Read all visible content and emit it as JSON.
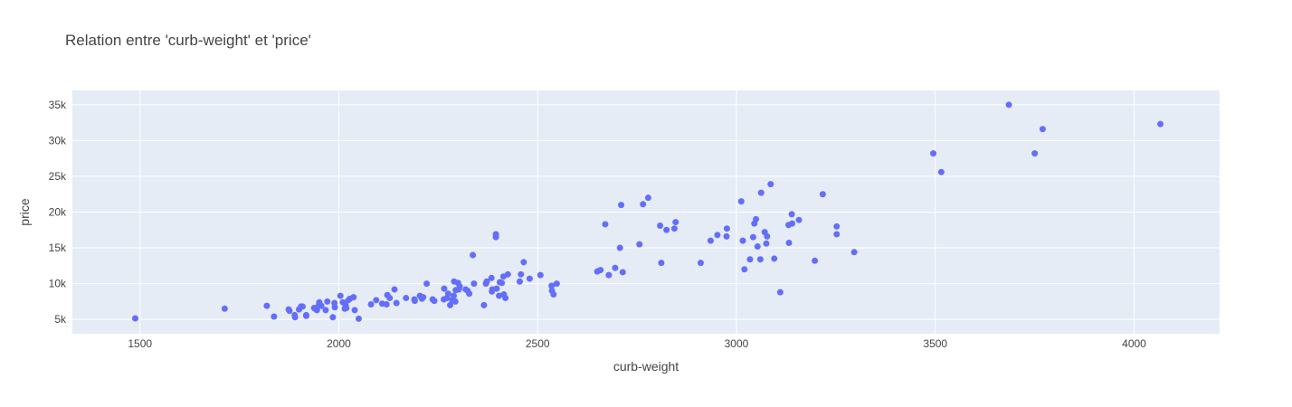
{
  "chart_data": {
    "type": "scatter",
    "title": "Relation entre 'curb-weight' et 'price'",
    "xlabel": "curb-weight",
    "ylabel": "price",
    "xlim": [
      1330,
      4215
    ],
    "ylim": [
      3000,
      37000
    ],
    "x_ticks": [
      1500,
      2000,
      2500,
      3000,
      3500,
      4000
    ],
    "x_tick_labels": [
      "1500",
      "2000",
      "2500",
      "3000",
      "3500",
      "4000"
    ],
    "y_ticks": [
      5000,
      10000,
      15000,
      20000,
      25000,
      30000,
      35000
    ],
    "y_tick_labels": [
      "5k",
      "10k",
      "15k",
      "20k",
      "25k",
      "30k",
      "35k"
    ],
    "grid": true,
    "colors": {
      "marker": "#636efa",
      "plot_bg": "#e5ecf6",
      "grid": "#ffffff"
    },
    "series": [
      {
        "x": [
          1488,
          1713,
          1819,
          1837,
          1874,
          1876,
          1889,
          1890,
          1900,
          1905,
          1909,
          1918,
          1918,
          1938,
          1940,
          1945,
          1950,
          1951,
          1956,
          1967,
          1971,
          1985,
          1989,
          1990,
          2004,
          2010,
          2015,
          2017,
          2019,
          2024,
          2028,
          2037,
          2040,
          2050,
          2081,
          2094,
          2109,
          2120,
          2122,
          2128,
          2140,
          2145,
          2169,
          2190,
          2191,
          2204,
          2209,
          2212,
          2221,
          2236,
          2240,
          2264,
          2265,
          2272,
          2275,
          2280,
          2285,
          2289,
          2290,
          2293,
          2294,
          2300,
          2302,
          2304,
          2319,
          2324,
          2328,
          2337,
          2340,
          2365,
          2370,
          2372,
          2384,
          2385,
          2386,
          2395,
          2395,
          2397,
          2403,
          2405,
          2410,
          2414,
          2415,
          2419,
          2425,
          2455,
          2458,
          2465,
          2480,
          2507,
          2535,
          2536,
          2540,
          2548,
          2650,
          2658,
          2670,
          2679,
          2695,
          2707,
          2710,
          2714,
          2756,
          2765,
          2778,
          2808,
          2811,
          2824,
          2844,
          2847,
          2910,
          2935,
          2952,
          2975,
          2976,
          3012,
          3016,
          3020,
          3034,
          3042,
          3045,
          3049,
          3053,
          3060,
          3062,
          3071,
          3075,
          3077,
          3086,
          3095,
          3110,
          3131,
          3132,
          3139,
          3140,
          3157,
          3197,
          3217,
          3252,
          3252,
          3296,
          3495,
          3515,
          3685,
          3750,
          3770,
          4066
        ],
        "y": [
          5150,
          6500,
          6900,
          5400,
          6400,
          6200,
          5600,
          5300,
          6400,
          6800,
          6800,
          5600,
          5500,
          6600,
          6500,
          6300,
          7000,
          7400,
          6900,
          6300,
          7500,
          5300,
          7300,
          6700,
          8300,
          7400,
          6500,
          7000,
          6600,
          7700,
          7900,
          8100,
          6300,
          5100,
          7100,
          7700,
          7200,
          7100,
          8400,
          8000,
          9200,
          7300,
          8000,
          7800,
          7600,
          8300,
          7900,
          8100,
          10000,
          7800,
          7600,
          7800,
          9300,
          8000,
          8600,
          7000,
          7700,
          8300,
          10300,
          7500,
          9100,
          10100,
          9200,
          9600,
          9200,
          9000,
          8600,
          14000,
          10000,
          7000,
          10000,
          10300,
          10800,
          8900,
          9200,
          16500,
          16900,
          9300,
          8300,
          10200,
          10100,
          11000,
          8500,
          8000,
          11300,
          10300,
          11300,
          13000,
          10700,
          11200,
          9700,
          9000,
          8500,
          10000,
          11700,
          11900,
          18300,
          11200,
          12200,
          15000,
          21000,
          11600,
          15500,
          21100,
          22000,
          18100,
          12900,
          17500,
          17700,
          18600,
          12900,
          16000,
          16800,
          16600,
          17700,
          21500,
          16000,
          12000,
          13400,
          16500,
          18400,
          19000,
          15200,
          13400,
          22700,
          17200,
          15600,
          16600,
          23900,
          13500,
          8800,
          18200,
          15700,
          19700,
          18400,
          18900,
          13200,
          22500,
          16900,
          18000,
          14400,
          28200,
          25600,
          35000,
          28200,
          31600,
          32300
        ]
      }
    ]
  }
}
